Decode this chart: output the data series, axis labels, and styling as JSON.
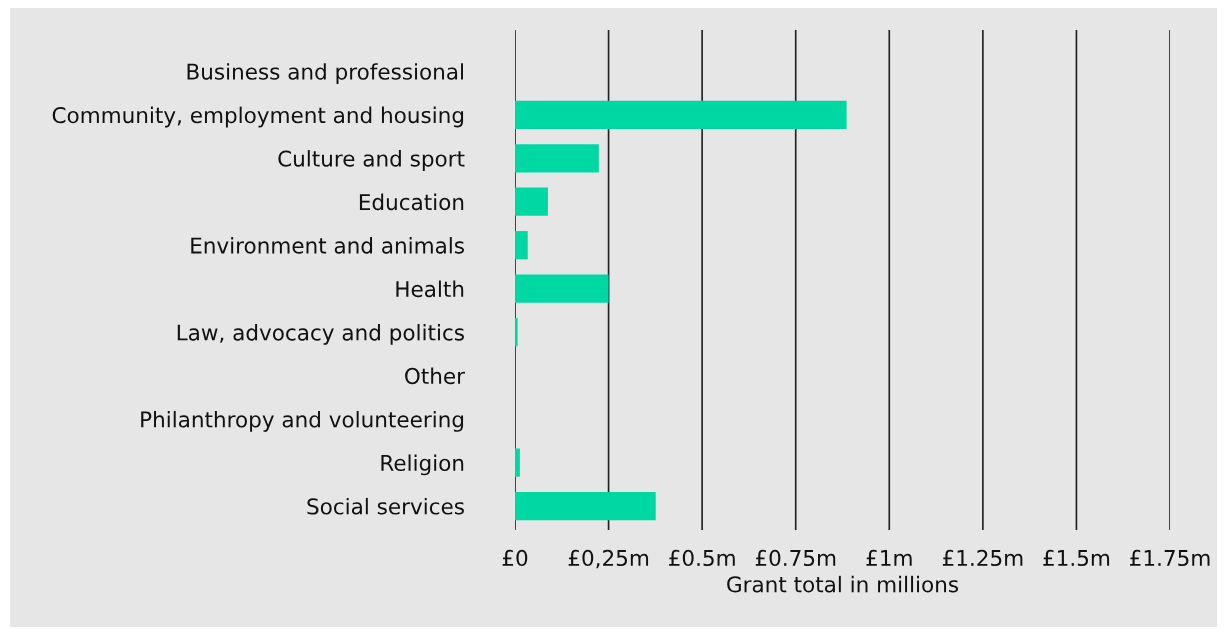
{
  "chart_data": {
    "type": "bar",
    "orientation": "horizontal",
    "xlabel": "Grant total in millions",
    "categories": [
      "Business and professional",
      "Community, employment and housing",
      "Culture and sport",
      "Education",
      "Environment and animals",
      "Health",
      "Law, advocacy and politics",
      "Other",
      "Philanthropy and volunteering",
      "Religion",
      "Social services"
    ],
    "values": [
      0,
      0.886,
      0.224,
      0.088,
      0.034,
      0.25,
      0.007,
      0,
      0,
      0.013,
      0.376
    ],
    "color": "#00d8a4",
    "xlim": [
      0,
      1.75
    ],
    "xticks": [
      {
        "value": 0,
        "label": "£0"
      },
      {
        "value": 0.25,
        "label": "£0,25m"
      },
      {
        "value": 0.5,
        "label": "£0.5m"
      },
      {
        "value": 0.75,
        "label": "£0.75m"
      },
      {
        "value": 1,
        "label": "£1m"
      },
      {
        "value": 1.25,
        "label": "£1.25m"
      },
      {
        "value": 1.5,
        "label": "£1.5m"
      },
      {
        "value": 1.75,
        "label": "£1.75m"
      }
    ],
    "grid": "x"
  }
}
